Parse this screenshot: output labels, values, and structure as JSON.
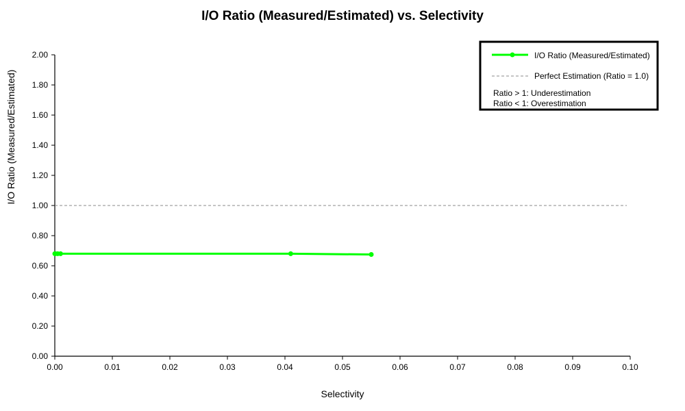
{
  "chart_data": {
    "type": "line",
    "title": "I/O Ratio (Measured/Estimated) vs. Selectivity",
    "xlabel": "Selectivity",
    "ylabel": "I/O Ratio (Measured/Estimated)",
    "xlim": [
      0.0,
      0.1
    ],
    "ylim": [
      0.0,
      2.0
    ],
    "x_ticks": [
      "0.00",
      "0.01",
      "0.02",
      "0.03",
      "0.04",
      "0.05",
      "0.06",
      "0.07",
      "0.08",
      "0.09",
      "0.10"
    ],
    "y_ticks": [
      "0.00",
      "0.20",
      "0.40",
      "0.60",
      "0.80",
      "1.00",
      "1.20",
      "1.40",
      "1.60",
      "1.80",
      "2.00"
    ],
    "grid": false,
    "legend_position": "top-right",
    "series": [
      {
        "name": "I/O Ratio (Measured/Estimated)",
        "color": "#00ff00",
        "x": [
          0.0,
          0.0001,
          0.0005,
          0.001,
          0.041,
          0.055
        ],
        "y": [
          0.68,
          0.68,
          0.68,
          0.68,
          0.68,
          0.675
        ]
      }
    ],
    "reference_line": {
      "name": "Perfect Estimation (Ratio = 1.0)",
      "y": 1.0,
      "color": "#888888"
    },
    "annotations": [
      "Ratio > 1: Underestimation",
      "Ratio < 1: Overestimation"
    ]
  }
}
